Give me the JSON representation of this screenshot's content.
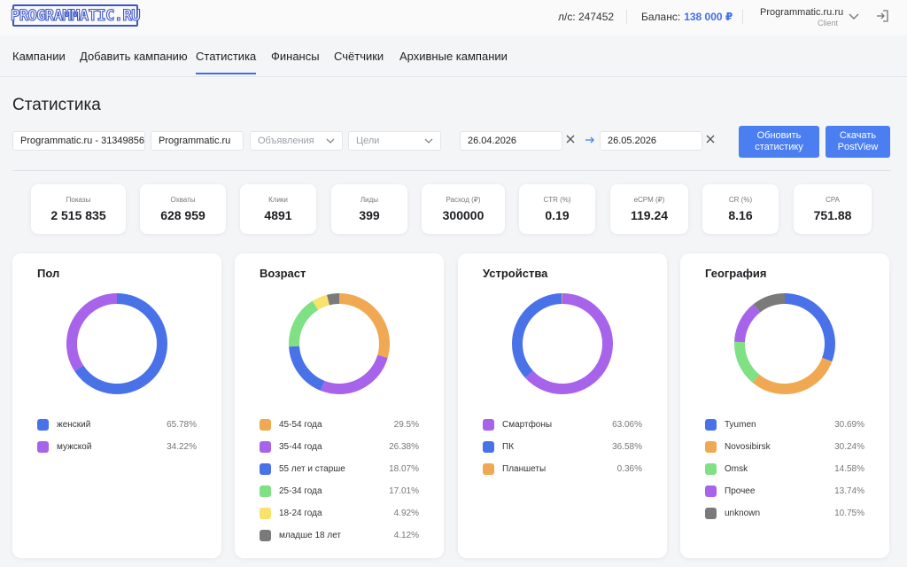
{
  "header": {
    "logo_text": "PROGRAMMATIC.RU",
    "account_label": "л/с: 247452",
    "balance_label": "Баланс:",
    "balance_value": "138 000 ₽",
    "user_name": "Programmatic.ru.ru",
    "user_role": "Client"
  },
  "tabs": [
    {
      "label": "Кампании"
    },
    {
      "label": "Добавить кампанию"
    },
    {
      "label": "Статистика",
      "active": true
    },
    {
      "label": "Финансы"
    },
    {
      "label": "Счётчики"
    },
    {
      "label": "Архивные кампании"
    }
  ],
  "page_title": "Статистика",
  "filters": {
    "account": "Programmatic.ru - 31349856",
    "campaign": "Programmatic.ru",
    "ads_placeholder": "Объявления",
    "goals_placeholder": "Цели",
    "date_from": "26.04.2026",
    "date_to": "26.05.2026",
    "refresh_button": "Обновить статистику",
    "download_button": "Скачать PostView"
  },
  "kpis": [
    {
      "label": "Показы",
      "value": "2 515 835"
    },
    {
      "label": "Охваты",
      "value": "628 959"
    },
    {
      "label": "Клики",
      "value": "4891"
    },
    {
      "label": "Лиды",
      "value": "399"
    },
    {
      "label": "Расход (₽)",
      "value": "300000"
    },
    {
      "label": "CTR (%)",
      "value": "0.19"
    },
    {
      "label": "eCPM (₽)",
      "value": "119.24"
    },
    {
      "label": "CR (%)",
      "value": "8.16"
    },
    {
      "label": "CPA",
      "value": "751.88"
    }
  ],
  "colors": {
    "blue": "#4a72e8",
    "purple": "#a764ea",
    "orange": "#f0a952",
    "green": "#7fe084",
    "yellow": "#f7e36b",
    "gray": "#7a7a7a",
    "accent": "#4b7ef0"
  },
  "cards": [
    {
      "title": "Пол",
      "segments": [
        {
          "label": "женский",
          "pct_label": "65.78%",
          "value": 65.78,
          "color": "#4a72e8"
        },
        {
          "label": "мужской",
          "pct_label": "34.22%",
          "value": 34.22,
          "color": "#a764ea"
        }
      ]
    },
    {
      "title": "Возраст",
      "segments": [
        {
          "label": "45-54 года",
          "pct_label": "29.5%",
          "value": 29.5,
          "color": "#f0a952"
        },
        {
          "label": "35-44 года",
          "pct_label": "26.38%",
          "value": 26.38,
          "color": "#a764ea"
        },
        {
          "label": "55 лет и старше",
          "pct_label": "18.07%",
          "value": 18.07,
          "color": "#4a72e8"
        },
        {
          "label": "25-34 года",
          "pct_label": "17.01%",
          "value": 17.01,
          "color": "#7fe084"
        },
        {
          "label": "18-24 года",
          "pct_label": "4.92%",
          "value": 4.92,
          "color": "#f7e36b"
        },
        {
          "label": "младше 18 лет",
          "pct_label": "4.12%",
          "value": 4.12,
          "color": "#7a7a7a"
        }
      ]
    },
    {
      "title": "Устройства",
      "segments": [
        {
          "label": "Смартфоны",
          "pct_label": "63.06%",
          "value": 63.06,
          "color": "#a764ea"
        },
        {
          "label": "ПК",
          "pct_label": "36.58%",
          "value": 36.58,
          "color": "#4a72e8"
        },
        {
          "label": "Планшеты",
          "pct_label": "0.36%",
          "value": 0.36,
          "color": "#f0a952"
        }
      ]
    },
    {
      "title": "География",
      "segments": [
        {
          "label": "Tyumen",
          "pct_label": "30.69%",
          "value": 30.69,
          "color": "#4a72e8"
        },
        {
          "label": "Novosibirsk",
          "pct_label": "30.24%",
          "value": 30.24,
          "color": "#f0a952"
        },
        {
          "label": "Omsk",
          "pct_label": "14.58%",
          "value": 14.58,
          "color": "#7fe084"
        },
        {
          "label": "Прочее",
          "pct_label": "13.74%",
          "value": 13.74,
          "color": "#a764ea"
        },
        {
          "label": "unknown",
          "pct_label": "10.75%",
          "value": 10.75,
          "color": "#7a7a7a"
        }
      ]
    }
  ]
}
